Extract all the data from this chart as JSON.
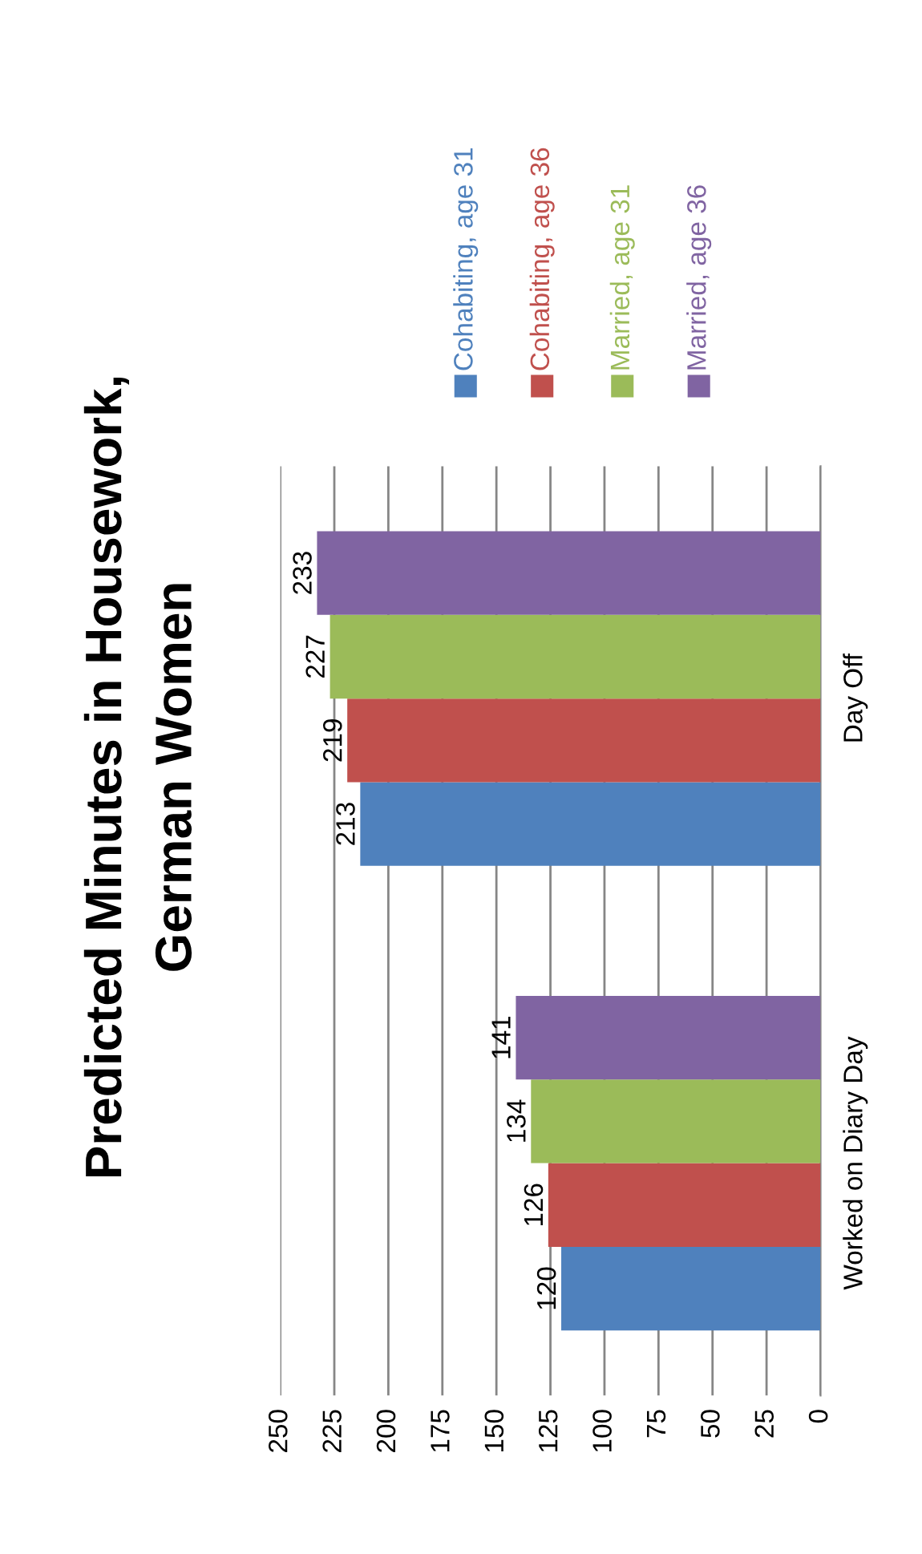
{
  "chart_data": {
    "type": "bar",
    "orientation": "horizontal",
    "title": "Predicted Minutes in Housework,\nGerman Women",
    "categories": [
      "Day Off",
      "Worked on Diary Day"
    ],
    "series": [
      {
        "name": "Cohabiting, age 31",
        "color": "#4f81bd",
        "values": [
          213,
          120
        ]
      },
      {
        "name": "Cohabiting, age 36",
        "color": "#c0504d",
        "values": [
          219,
          126
        ]
      },
      {
        "name": "Married, age 31",
        "color": "#9bbb59",
        "values": [
          227,
          134
        ]
      },
      {
        "name": "Married, age 36",
        "color": "#8064a2",
        "values": [
          233,
          141
        ]
      }
    ],
    "xlim": [
      250,
      0
    ],
    "xticks": [
      0,
      25,
      50,
      75,
      100,
      125,
      150,
      175,
      200,
      225,
      250
    ],
    "grid": "x",
    "legend": "top",
    "data_labels": true
  }
}
